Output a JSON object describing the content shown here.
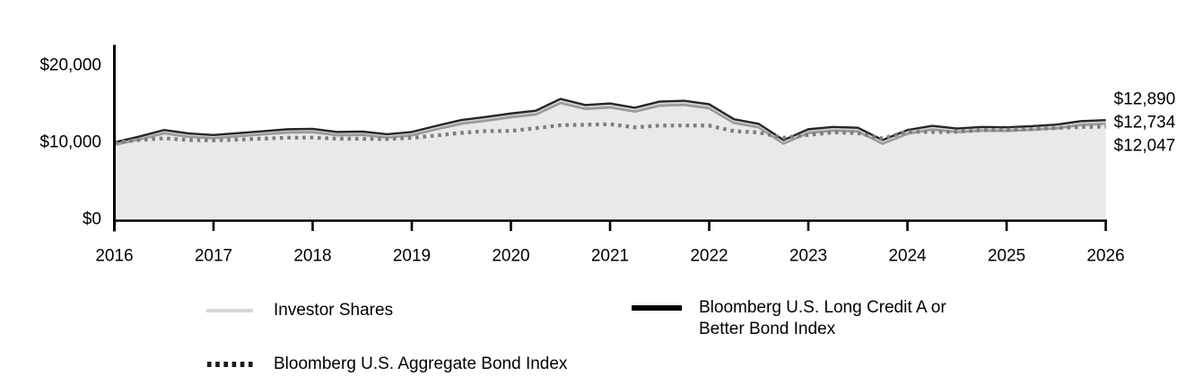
{
  "chart_data": {
    "type": "area",
    "title": "",
    "xlabel": "",
    "ylabel": "",
    "x_range": [
      2016,
      2026
    ],
    "ylim": [
      0,
      21000
    ],
    "grid": false,
    "legend_position": "bottom",
    "x_ticks": [
      2016,
      2017,
      2018,
      2019,
      2020,
      2021,
      2022,
      2023,
      2024,
      2025,
      2026
    ],
    "x_tick_labels": [
      "2016",
      "2017",
      "2018",
      "2019",
      "2020",
      "2021",
      "2022",
      "2023",
      "2024",
      "2025",
      "2026"
    ],
    "y_ticks": [
      {
        "value": 0,
        "label": "$0"
      },
      {
        "value": 10000,
        "label": "$10,000"
      },
      {
        "value": 20000,
        "label": "$20,000"
      }
    ],
    "x": [
      2016,
      2016.25,
      2016.5,
      2016.75,
      2017,
      2017.25,
      2017.5,
      2017.75,
      2018,
      2018.25,
      2018.5,
      2018.75,
      2019,
      2019.25,
      2019.5,
      2019.75,
      2020,
      2020.25,
      2020.5,
      2020.75,
      2021,
      2021.25,
      2021.5,
      2021.75,
      2022,
      2022.25,
      2022.5,
      2022.75,
      2023,
      2023.25,
      2023.5,
      2023.75,
      2024,
      2024.25,
      2024.5,
      2024.75,
      2025,
      2025.25,
      2025.5,
      2025.75,
      2026
    ],
    "series": [
      {
        "id": "investor",
        "name": "Investor Shares",
        "style": "area",
        "color": "#d2d2d2",
        "shadow_color": "#9a9a9a",
        "fill": "#e9e9e9",
        "final_value": 12734,
        "end_label": "$12,734",
        "values": [
          10000,
          10700,
          11500,
          11050,
          10870,
          11120,
          11370,
          11600,
          11650,
          11250,
          11300,
          10950,
          11250,
          12030,
          12760,
          13150,
          13600,
          13950,
          15450,
          14680,
          14870,
          14330,
          15100,
          15200,
          14760,
          12850,
          12280,
          10180,
          11550,
          11850,
          11760,
          10160,
          11450,
          12000,
          11660,
          11860,
          11810,
          11960,
          12150,
          12600,
          12734
        ]
      },
      {
        "id": "long_credit",
        "name": "Bloomberg U.S. Long Credit A or Better Bond Index",
        "style": "solid",
        "color": "#262626",
        "final_value": 12890,
        "end_label": "$12,890",
        "values": [
          10000,
          10750,
          11600,
          11150,
          10950,
          11200,
          11450,
          11700,
          11750,
          11350,
          11400,
          11050,
          11350,
          12150,
          12900,
          13300,
          13750,
          14100,
          15650,
          14850,
          15050,
          14500,
          15300,
          15400,
          14950,
          13000,
          12400,
          10300,
          11700,
          12000,
          11900,
          10300,
          11600,
          12150,
          11800,
          12000,
          11950,
          12100,
          12300,
          12750,
          12890
        ]
      },
      {
        "id": "aggregate",
        "name": "Bloomberg U.S. Aggregate Bond Index",
        "style": "dotted",
        "color": "#7d7d7d",
        "final_value": 12047,
        "end_label": "$12,047",
        "values": [
          10000,
          10300,
          10530,
          10300,
          10260,
          10360,
          10490,
          10600,
          10620,
          10470,
          10460,
          10420,
          10580,
          10900,
          11230,
          11460,
          11480,
          11840,
          12220,
          12290,
          12360,
          11950,
          12180,
          12190,
          12170,
          11450,
          11280,
          10600,
          10960,
          11290,
          11200,
          10500,
          11400,
          11330,
          11380,
          11570,
          11650,
          11720,
          11850,
          11990,
          12047
        ]
      }
    ],
    "end_labels": [
      "$12,890",
      "$12,734",
      "$12,047"
    ]
  },
  "legend": {
    "items": [
      {
        "label": "Investor Shares",
        "swatch": "light-gray-line"
      },
      {
        "label": "Bloomberg U.S. Long Credit A or Better Bond Index",
        "swatch": "solid-black-line"
      },
      {
        "label": "Bloomberg U.S. Aggregate Bond Index",
        "swatch": "dotted-black-line"
      }
    ]
  },
  "colors": {
    "axis": "#000000",
    "text": "#000000",
    "background": "#ffffff"
  }
}
